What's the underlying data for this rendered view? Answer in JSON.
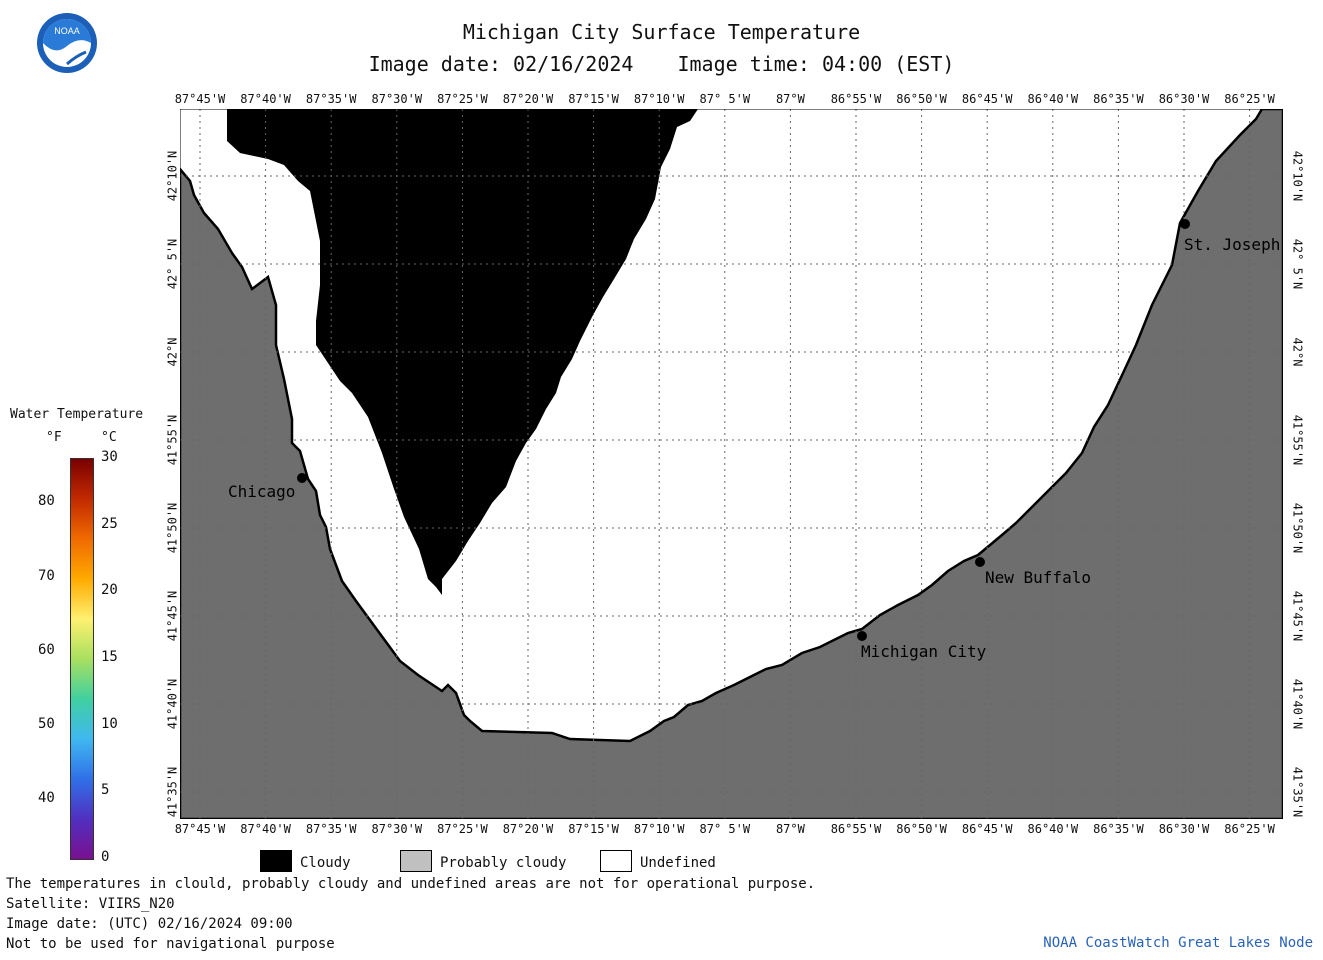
{
  "header": {
    "title": "Michigan City Surface Temperature",
    "subtitle_date": "Image date: 02/16/2024",
    "subtitle_time": "Image time: 04:00 (EST)"
  },
  "logo": {
    "text": "NOAA"
  },
  "axes": {
    "longitude_labels": [
      "87°45'W",
      "87°40'W",
      "87°35'W",
      "87°30'W",
      "87°25'W",
      "87°20'W",
      "87°15'W",
      "87°10'W",
      "87° 5'W",
      "87°W",
      "86°55'W",
      "86°50'W",
      "86°45'W",
      "86°40'W",
      "86°35'W",
      "86°30'W",
      "86°25'W"
    ],
    "latitude_labels": [
      "42°10'N",
      "42° 5'N",
      "42°N",
      "41°55'N",
      "41°50'N",
      "41°45'N",
      "41°40'N",
      "41°35'N"
    ]
  },
  "places": [
    {
      "name": "Chicago"
    },
    {
      "name": "St. Joseph"
    },
    {
      "name": "New Buffalo"
    },
    {
      "name": "Michigan City"
    }
  ],
  "colorbar": {
    "title": "Water Temperature",
    "unit_f": "°F",
    "unit_c": "°C",
    "f_ticks": [
      "80",
      "70",
      "60",
      "50",
      "40"
    ],
    "c_ticks": [
      "30",
      "25",
      "20",
      "15",
      "10",
      "5",
      "0"
    ]
  },
  "legend": {
    "cloudy": "Cloudy",
    "probably_cloudy": "Probably cloudy",
    "undefined": "Undefined"
  },
  "colors": {
    "cloud": "#000000",
    "land": "#6e6e6e",
    "probably_cloudy": "#c0c0c0",
    "undefined": "#ffffff",
    "credit": "#2a62b8"
  },
  "footer": {
    "line1": "The temperatures in clould, probably cloudy and undefined areas are not for operational purpose.",
    "line2": "Satellite: VIIRS_N20",
    "line3": "Image date: (UTC) 02/16/2024  09:00",
    "line4": "Not to be used for navigational purpose",
    "credit": "NOAA CoastWatch Great Lakes Node"
  }
}
